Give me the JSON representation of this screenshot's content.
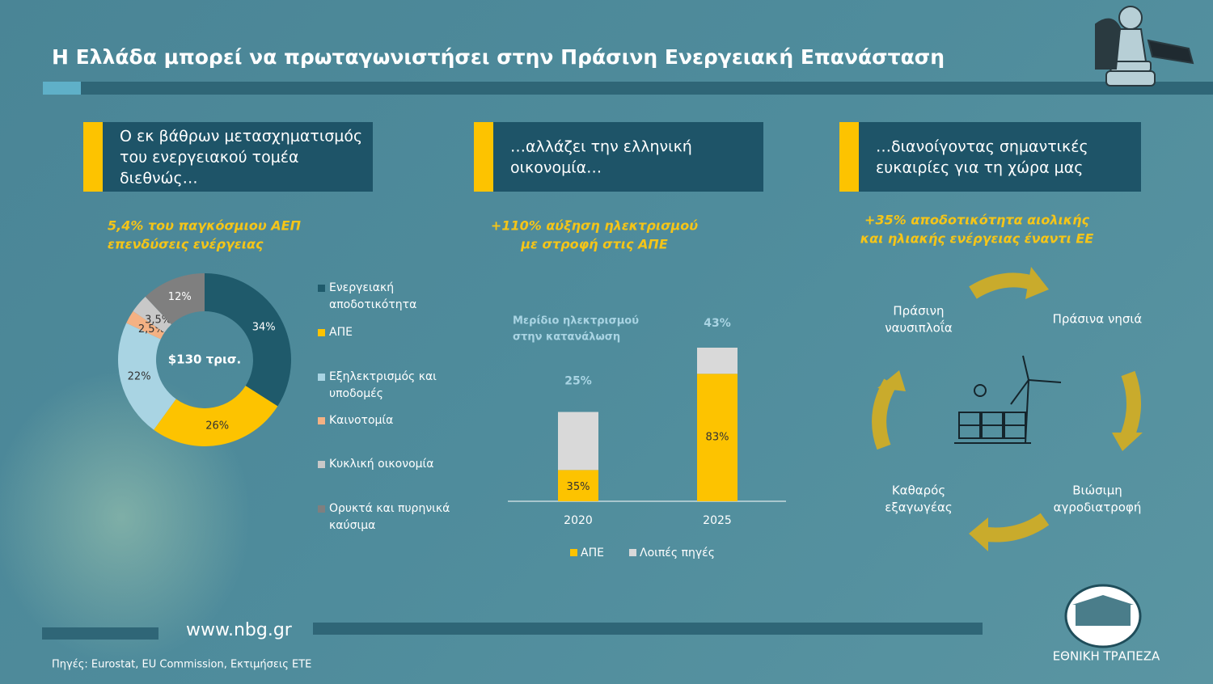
{
  "header": {
    "title": "Η Ελλάδα μπορεί να πρωταγωνιστήσει στην Πράσινη Ενεργειακή Επανάσταση"
  },
  "columns": [
    {
      "heading": [
        "Ο εκ βάθρων μετασχηματισμός",
        "του ενεργειακού τομέα",
        "διεθνώς…"
      ]
    },
    {
      "heading": [
        "…αλλάζει την ελληνική",
        "οικονομία…"
      ]
    },
    {
      "heading": [
        "…διανοίγοντας σημαντικές",
        "ευκαιρίες για τη χώρα μας"
      ]
    }
  ],
  "chart_data": [
    {
      "type": "pie",
      "title": [
        "5,4% του παγκόσμιου ΑΕΠ",
        "επενδύσεις ενέργειας"
      ],
      "center_label": "$130 τρισ.",
      "categories": [
        "Ενεργειακή αποδοτικότητα",
        "ΑΠΕ",
        "Εξηλεκτρισμός και υποδομές",
        "Καινοτομία",
        "Κυκλική οικονομία",
        "Ορυκτά και πυρηνικά καύσιμα"
      ],
      "values": [
        34,
        26,
        22,
        2.5,
        3.5,
        12
      ],
      "value_labels": [
        "34%",
        "26%",
        "22%",
        "2,5%",
        "3,5%",
        "12%"
      ],
      "colors": [
        "#1f5a6b",
        "#fdc300",
        "#a9d4e3",
        "#f4b183",
        "#c8c8c8",
        "#7f7f7f"
      ]
    },
    {
      "type": "bar",
      "title": [
        "+110% αύξηση ηλεκτρισμού",
        "με στροφή στις ΑΠΕ"
      ],
      "annotation": [
        "Μερίδιο ηλεκτρισμού",
        "στην κατανάλωση"
      ],
      "categories": [
        "2020",
        "2025"
      ],
      "totals": [
        25,
        43
      ],
      "total_labels": [
        "25%",
        "43%"
      ],
      "series": [
        {
          "name": "ΑΠΕ",
          "color": "#fdc300",
          "values": [
            35,
            83
          ],
          "value_labels": [
            "35%",
            "83%"
          ]
        },
        {
          "name": "Λοιπές πηγές",
          "color": "#d9d9d9",
          "values": [
            65,
            17
          ]
        }
      ]
    }
  ],
  "cycle": {
    "title": [
      "+35% αποδοτικότητα αιολικής",
      "και ηλιακής ενέργειας έναντι ΕΕ"
    ],
    "items": [
      [
        "Πράσινα νησιά"
      ],
      [
        "Βιώσιμη",
        "αγροδιατροφή"
      ],
      [
        "Καθαρός",
        "εξαγωγέας"
      ],
      [
        "Πράσινη",
        "ναυσιπλοΐα"
      ]
    ]
  },
  "footer": {
    "website": "www.nbg.gr",
    "source": "Πηγές: Eurostat, EU Commission, Εκτιμήσεις ΕΤΕ",
    "bank": "ΕΘΝΙΚΗ ΤΡΑΠΕΖΑ"
  }
}
